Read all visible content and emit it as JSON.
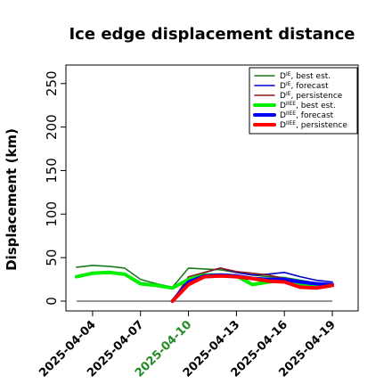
{
  "chart_data": {
    "type": "line",
    "title": "Ice edge displacement distance",
    "xlabel": "",
    "ylabel": "Displacement (km)",
    "ylim": [
      0,
      260
    ],
    "yticks": [
      0,
      50,
      100,
      150,
      200,
      250
    ],
    "xlim": [
      "2025-04-01",
      "2025-04-20"
    ],
    "xticks": [
      {
        "label": "2025-04-04",
        "color": "#000000"
      },
      {
        "label": "2025-04-07",
        "color": "#000000"
      },
      {
        "label": "2025-04-10",
        "color": "#228B22"
      },
      {
        "label": "2025-04-13",
        "color": "#000000"
      },
      {
        "label": "2025-04-16",
        "color": "#000000"
      },
      {
        "label": "2025-04-19",
        "color": "#000000"
      }
    ],
    "legend_position": "top-right",
    "zero_line": {
      "y": 0,
      "from": "2025-04-03",
      "to": "2025-04-19",
      "color": "#555555"
    },
    "series": [
      {
        "name_main": "D",
        "name_sup": "IE",
        "name_rest": ", best est.",
        "color": "#1a7a1a",
        "width": 1.6,
        "points": [
          [
            "2025-04-03",
            39
          ],
          [
            "2025-04-04",
            41
          ],
          [
            "2025-04-05",
            40
          ],
          [
            "2025-04-06",
            38
          ],
          [
            "2025-04-07",
            25
          ],
          [
            "2025-04-08",
            20
          ],
          [
            "2025-04-09",
            16
          ],
          [
            "2025-04-10",
            38
          ],
          [
            "2025-04-11",
            37
          ],
          [
            "2025-04-12",
            36
          ],
          [
            "2025-04-13",
            33
          ],
          [
            "2025-04-14",
            30
          ],
          [
            "2025-04-15",
            28
          ],
          [
            "2025-04-16",
            27
          ],
          [
            "2025-04-17",
            24
          ],
          [
            "2025-04-18",
            21
          ],
          [
            "2025-04-19",
            20
          ]
        ]
      },
      {
        "name_main": "D",
        "name_sup": "IE",
        "name_rest": ", forecast",
        "color": "#0000cc",
        "width": 1.6,
        "points": [
          [
            "2025-04-09",
            0
          ],
          [
            "2025-04-10",
            25
          ],
          [
            "2025-04-11",
            33
          ],
          [
            "2025-04-12",
            38
          ],
          [
            "2025-04-13",
            33
          ],
          [
            "2025-04-14",
            30
          ],
          [
            "2025-04-15",
            31
          ],
          [
            "2025-04-16",
            33
          ],
          [
            "2025-04-17",
            28
          ],
          [
            "2025-04-18",
            24
          ],
          [
            "2025-04-19",
            22
          ]
        ]
      },
      {
        "name_main": "D",
        "name_sup": "IE",
        "name_rest": ", persistence",
        "color": "#8b1a1a",
        "width": 1.6,
        "points": [
          [
            "2025-04-09",
            0
          ],
          [
            "2025-04-10",
            28
          ],
          [
            "2025-04-11",
            33
          ],
          [
            "2025-04-12",
            38
          ],
          [
            "2025-04-13",
            34
          ],
          [
            "2025-04-14",
            32
          ],
          [
            "2025-04-15",
            30
          ],
          [
            "2025-04-16",
            26
          ],
          [
            "2025-04-17",
            22
          ],
          [
            "2025-04-18",
            20
          ],
          [
            "2025-04-19",
            19
          ]
        ]
      },
      {
        "name_main": "D",
        "name_sup": "IIEE",
        "name_rest": ", best est.",
        "color": "#00ee00",
        "width": 4,
        "points": [
          [
            "2025-04-03",
            28
          ],
          [
            "2025-04-04",
            32
          ],
          [
            "2025-04-05",
            33
          ],
          [
            "2025-04-06",
            31
          ],
          [
            "2025-04-07",
            20
          ],
          [
            "2025-04-08",
            18
          ],
          [
            "2025-04-09",
            15
          ],
          [
            "2025-04-10",
            25
          ],
          [
            "2025-04-11",
            30
          ],
          [
            "2025-04-12",
            30
          ],
          [
            "2025-04-13",
            29
          ],
          [
            "2025-04-14",
            19
          ],
          [
            "2025-04-15",
            22
          ],
          [
            "2025-04-16",
            24
          ],
          [
            "2025-04-17",
            20
          ],
          [
            "2025-04-18",
            19
          ],
          [
            "2025-04-19",
            18
          ]
        ]
      },
      {
        "name_main": "D",
        "name_sup": "IIEE",
        "name_rest": ", forecast",
        "color": "#0000ff",
        "width": 4,
        "points": [
          [
            "2025-04-09",
            0
          ],
          [
            "2025-04-10",
            22
          ],
          [
            "2025-04-11",
            29
          ],
          [
            "2025-04-12",
            30
          ],
          [
            "2025-04-13",
            29
          ],
          [
            "2025-04-14",
            26
          ],
          [
            "2025-04-15",
            25
          ],
          [
            "2025-04-16",
            25
          ],
          [
            "2025-04-17",
            22
          ],
          [
            "2025-04-18",
            20
          ],
          [
            "2025-04-19",
            19
          ]
        ]
      },
      {
        "name_main": "D",
        "name_sup": "IIEE",
        "name_rest": ", persistence",
        "color": "#ff0000",
        "width": 4,
        "points": [
          [
            "2025-04-09",
            0
          ],
          [
            "2025-04-10",
            19
          ],
          [
            "2025-04-11",
            28
          ],
          [
            "2025-04-12",
            29
          ],
          [
            "2025-04-13",
            28
          ],
          [
            "2025-04-14",
            26
          ],
          [
            "2025-04-15",
            23
          ],
          [
            "2025-04-16",
            22
          ],
          [
            "2025-04-17",
            16
          ],
          [
            "2025-04-18",
            15
          ],
          [
            "2025-04-19",
            18
          ]
        ]
      }
    ]
  }
}
